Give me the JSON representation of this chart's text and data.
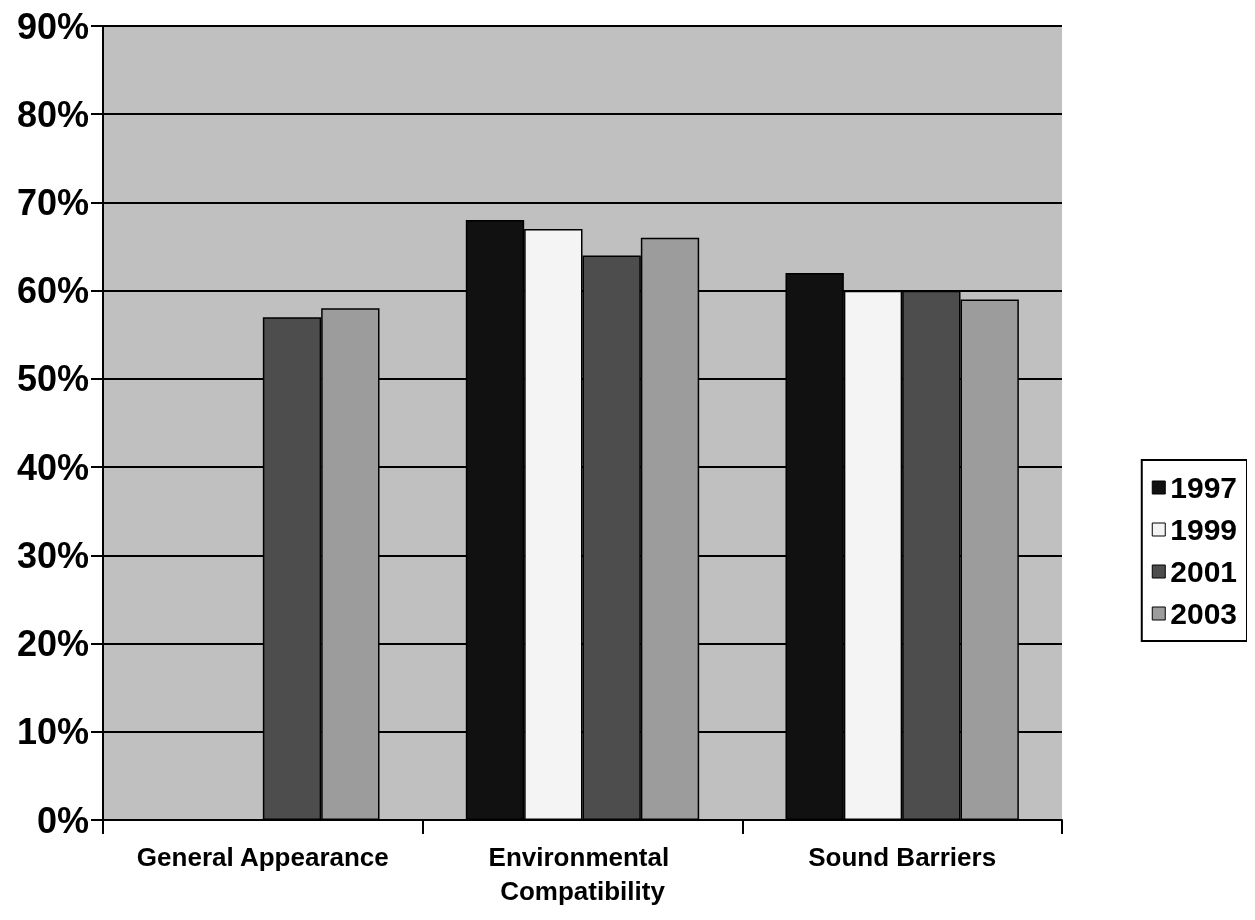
{
  "chart_data": {
    "type": "bar",
    "categories": [
      "General Appearance",
      "Environmental Compatibility",
      "Sound Barriers"
    ],
    "series": [
      {
        "name": "1997",
        "color": "#111111",
        "values": [
          null,
          68,
          62
        ]
      },
      {
        "name": "1999",
        "color": "#f4f4f4",
        "values": [
          null,
          67,
          60
        ]
      },
      {
        "name": "2001",
        "color": "#4d4d4d",
        "values": [
          57,
          64,
          60
        ]
      },
      {
        "name": "2003",
        "color": "#9c9c9c",
        "values": [
          58,
          66,
          59
        ]
      }
    ],
    "ylim": [
      0,
      90
    ],
    "yticks": [
      {
        "value": 0,
        "label": "0%"
      },
      {
        "value": 10,
        "label": "10%"
      },
      {
        "value": 20,
        "label": "20%"
      },
      {
        "value": 30,
        "label": "30%"
      },
      {
        "value": 40,
        "label": "40%"
      },
      {
        "value": 50,
        "label": "50%"
      },
      {
        "value": 60,
        "label": "60%"
      },
      {
        "value": 70,
        "label": "70%"
      },
      {
        "value": 80,
        "label": "80%"
      },
      {
        "value": 90,
        "label": "90%"
      }
    ],
    "grid": "y",
    "legend": "right"
  }
}
